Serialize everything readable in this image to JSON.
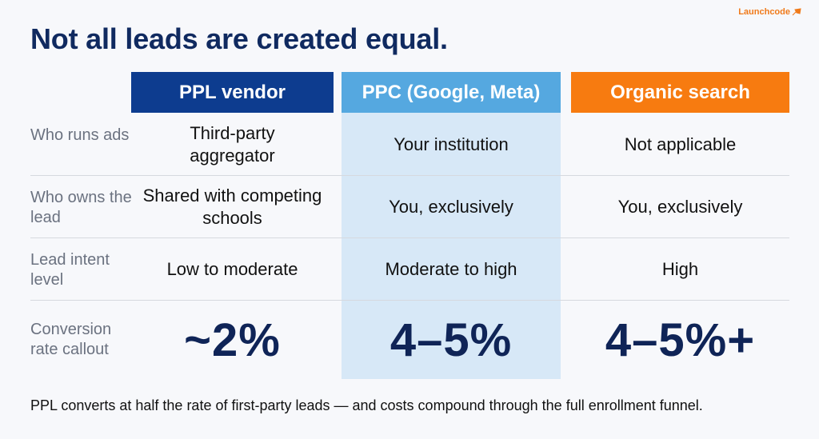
{
  "brand": {
    "name": "Launchcode",
    "icon": "rocket-icon",
    "color": "#f07a1a"
  },
  "title": "Not all leads are created equal.",
  "columns": [
    {
      "label": "PPL vendor",
      "color": "#0d3c8f"
    },
    {
      "label": "PPC (Google, Meta)",
      "color": "#55a8e0"
    },
    {
      "label": "Organic search",
      "color": "#f77b10"
    }
  ],
  "rows": [
    {
      "label": "Who runs ads",
      "values": [
        "Third-party aggregator",
        "Your institution",
        "Not applicable"
      ]
    },
    {
      "label": "Who owns the lead",
      "values": [
        "Shared with competing schools",
        "You, exclusively",
        "You, exclusively"
      ]
    },
    {
      "label": "Lead intent level",
      "values": [
        "Low to moderate",
        "Moderate to high",
        "High"
      ]
    },
    {
      "label": "Conversion rate callout",
      "values": [
        "~2%",
        "4–5%",
        "4–5%+"
      ]
    }
  ],
  "footer": "PPL converts at half the rate of first-party leads — and costs compound through the full enrollment funnel."
}
